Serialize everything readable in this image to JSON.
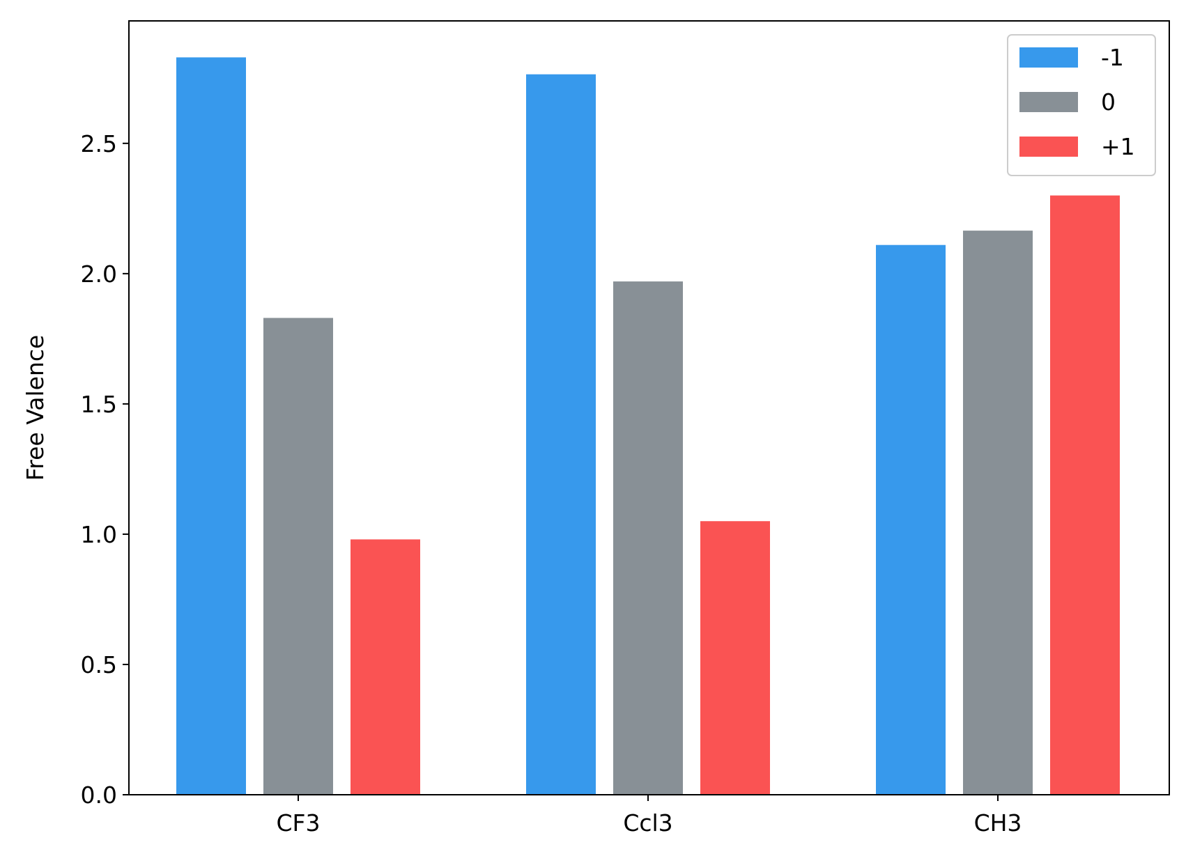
{
  "chart_data": {
    "type": "bar",
    "title": "",
    "xlabel": "",
    "ylabel": "Free Valence",
    "categories": [
      "CF3",
      "Ccl3",
      "CH3"
    ],
    "series": [
      {
        "name": "-1",
        "color": "#3799ec",
        "values": [
          2.83,
          2.765,
          2.11
        ]
      },
      {
        "name": "0",
        "color": "#889096",
        "values": [
          1.83,
          1.97,
          2.165
        ]
      },
      {
        "name": "+1",
        "color": "#fa5353",
        "values": [
          0.98,
          1.05,
          2.3
        ]
      }
    ],
    "ylim": [
      0,
      2.97
    ],
    "yticks": [
      0.0,
      0.5,
      1.0,
      1.5,
      2.0,
      2.5
    ],
    "ytick_labels": [
      "0.0",
      "0.5",
      "1.0",
      "1.5",
      "2.0",
      "2.5"
    ],
    "grid": false,
    "legend_position": "top-right"
  }
}
